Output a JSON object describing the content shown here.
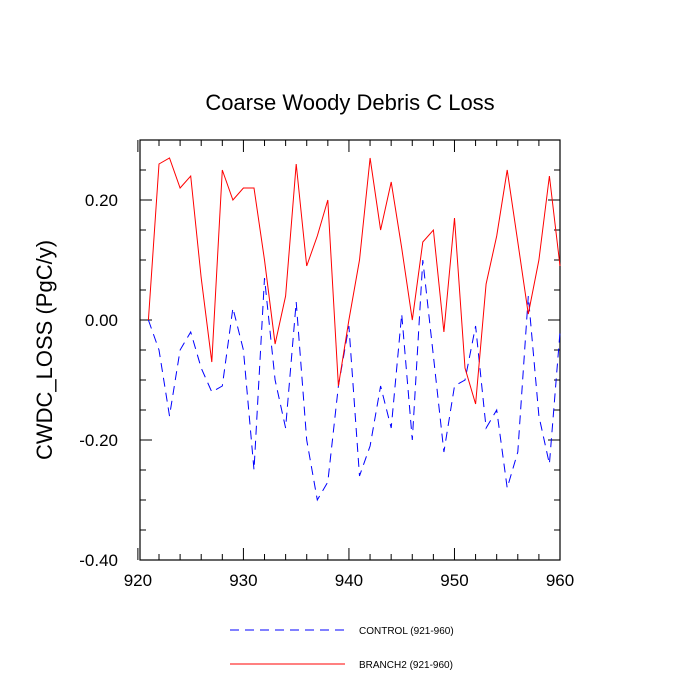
{
  "chart_data": {
    "type": "line",
    "title": "Coarse Woody Debris C Loss",
    "ylabel": "CWDC_LOSS  (PgC/y)",
    "xlabel": "",
    "xlim": [
      921,
      960
    ],
    "ylim": [
      -0.4,
      0.3
    ],
    "x_ticks": [
      920,
      930,
      940,
      950,
      960
    ],
    "x_tick_labels": [
      "920",
      "930",
      "940",
      "950",
      "960"
    ],
    "y_ticks": [
      -0.4,
      -0.2,
      0.0,
      0.2
    ],
    "y_tick_labels": [
      "-0.40",
      "-0.20",
      "0.00",
      "0.20"
    ],
    "x": [
      921,
      922,
      923,
      924,
      925,
      926,
      927,
      928,
      929,
      930,
      931,
      932,
      933,
      934,
      935,
      936,
      937,
      938,
      939,
      940,
      941,
      942,
      943,
      944,
      945,
      946,
      947,
      948,
      949,
      950,
      951,
      952,
      953,
      954,
      955,
      956,
      957,
      958,
      959,
      960
    ],
    "series": [
      {
        "name": "CONTROL (921-960)",
        "color": "#0000ff",
        "dash": "dashed",
        "values": [
          0.0,
          -0.05,
          -0.16,
          -0.05,
          -0.02,
          -0.08,
          -0.12,
          -0.11,
          0.02,
          -0.05,
          -0.25,
          0.07,
          -0.1,
          -0.18,
          0.03,
          -0.2,
          -0.3,
          -0.27,
          -0.11,
          -0.01,
          -0.26,
          -0.21,
          -0.11,
          -0.18,
          0.01,
          -0.2,
          0.1,
          -0.06,
          -0.22,
          -0.11,
          -0.1,
          -0.01,
          -0.18,
          -0.15,
          -0.28,
          -0.22,
          0.04,
          -0.16,
          -0.24,
          -0.02
        ]
      },
      {
        "name": "BRANCH2 (921-960)",
        "color": "#ff0000",
        "dash": "solid",
        "values": [
          0.0,
          0.26,
          0.27,
          0.22,
          0.24,
          0.07,
          -0.07,
          0.25,
          0.2,
          0.22,
          0.22,
          0.1,
          -0.04,
          0.04,
          0.26,
          0.09,
          0.14,
          0.2,
          -0.11,
          0.0,
          0.1,
          0.27,
          0.15,
          0.23,
          0.12,
          0.0,
          0.13,
          0.15,
          -0.02,
          0.17,
          -0.08,
          -0.14,
          0.06,
          0.14,
          0.25,
          0.13,
          0.01,
          0.1,
          0.24,
          0.09
        ]
      }
    ],
    "legend_position": "bottom-center"
  }
}
